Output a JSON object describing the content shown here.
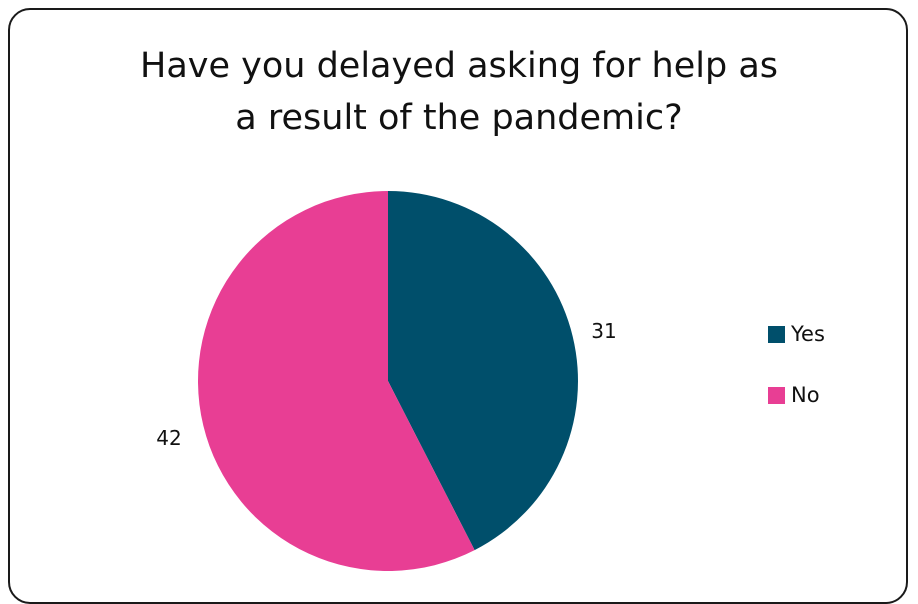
{
  "chart_data": {
    "type": "pie",
    "title_lines": [
      "Have you delayed asking for help as",
      "a result of the pandemic?"
    ],
    "categories": [
      "Yes",
      "No"
    ],
    "values": [
      31,
      42
    ],
    "data_labels": [
      "31",
      "42"
    ],
    "colors": [
      "#004f6b",
      "#e83e94"
    ],
    "legend_placement": "right",
    "start_angle": "12 o'clock",
    "direction": "clockwise"
  }
}
